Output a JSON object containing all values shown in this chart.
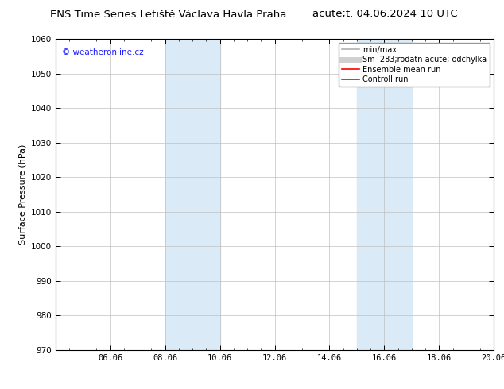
{
  "title_left": "ENS Time Series Letiště Václava Havla Praha",
  "title_right": "acute;t. 04.06.2024 10 UTC",
  "ylabel": "Surface Pressure (hPa)",
  "ylim": [
    970,
    1060
  ],
  "yticks": [
    970,
    980,
    990,
    1000,
    1010,
    1020,
    1030,
    1040,
    1050,
    1060
  ],
  "xlim": [
    0,
    16
  ],
  "xtick_positions": [
    2,
    4,
    6,
    8,
    10,
    12,
    14,
    16
  ],
  "xtick_labels": [
    "06.06",
    "08.06",
    "10.06",
    "12.06",
    "14.06",
    "16.06",
    "18.06",
    "20.06"
  ],
  "shaded_bands": [
    {
      "x_start": 4,
      "x_end": 6
    },
    {
      "x_start": 11,
      "x_end": 13
    }
  ],
  "shaded_color": "#daeaf7",
  "watermark": "© weatheronline.cz",
  "watermark_color": "#1a1aff",
  "legend_entries": [
    {
      "label": "min/max",
      "color": "#b0b0b0",
      "lw": 1.2
    },
    {
      "label": "Sm  283;rodatn acute; odchylka",
      "color": "#d0d0d0",
      "lw": 5
    },
    {
      "label": "Ensemble mean run",
      "color": "#ff0000",
      "lw": 1.2
    },
    {
      "label": "Controll run",
      "color": "#008000",
      "lw": 1.2
    }
  ],
  "background_color": "#ffffff",
  "plot_bg_color": "#ffffff",
  "grid_color": "#c0c0c0",
  "tick_color": "#000000",
  "title_fontsize": 9.5,
  "ylabel_fontsize": 8,
  "tick_fontsize": 7.5,
  "watermark_fontsize": 7.5,
  "legend_fontsize": 7,
  "fig_width": 6.34,
  "fig_height": 4.9,
  "dpi": 100
}
